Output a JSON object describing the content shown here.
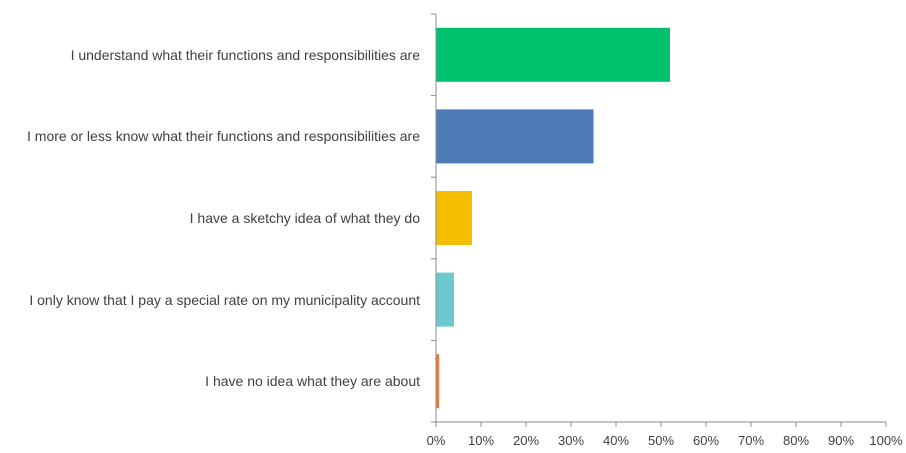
{
  "chart_data": {
    "type": "bar",
    "orientation": "horizontal",
    "title": "",
    "xlabel": "",
    "ylabel": "",
    "categories": [
      "I understand what their functions and responsibilities are",
      "I more or less know what their functions and responsibilities are",
      "I have a sketchy idea of what they do",
      "I only know that I pay a special rate on my municipality account",
      "I have no idea what they are about"
    ],
    "values": [
      52,
      35,
      8,
      4,
      0.7
    ],
    "value_unit": "%",
    "colors": [
      "#00C16E",
      "#4E7CB8",
      "#F6BE00",
      "#6CC9D0",
      "#F07A3C"
    ],
    "xlim": [
      0,
      100
    ],
    "x_ticks": [
      "0%",
      "10%",
      "20%",
      "30%",
      "40%",
      "50%",
      "60%",
      "70%",
      "80%",
      "90%",
      "100%"
    ],
    "grid": false,
    "legend": "none"
  }
}
